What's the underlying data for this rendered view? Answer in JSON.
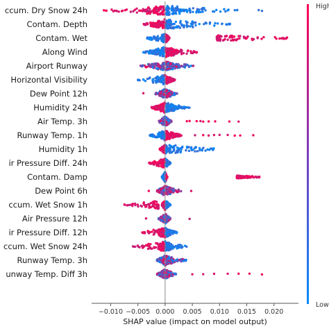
{
  "chart_data": {
    "type": "scatter",
    "subtype": "shap-beeswarm",
    "title": "",
    "xlabel": "SHAP value (impact on model output)",
    "ylabel": "",
    "xlim": [
      -0.0135,
      0.0245
    ],
    "xticks": [
      -0.01,
      -0.005,
      0.0,
      0.005,
      0.01,
      0.015,
      0.02
    ],
    "xtick_labels": [
      "−0.010",
      "−0.005",
      "0.000",
      "0.005",
      "0.010",
      "0.015",
      "0.020"
    ],
    "colorbar": {
      "high_label": "High",
      "low_label": "Low",
      "high_color": "#ff0052",
      "low_color": "#008bfb"
    },
    "zero_line": true,
    "features": [
      {
        "label": "ccum. Dry Snow 24h",
        "neg_range": [
          -0.0115,
          -0.0003
        ],
        "pos_range": [
          0.0003,
          0.0135
        ],
        "neg_color": "high",
        "pos_color": "low",
        "core_width": 0.004,
        "outliers": [
          0.0172,
          0.0178
        ]
      },
      {
        "label": "Contam. Depth",
        "neg_range": [
          -0.004,
          -0.001
        ],
        "pos_range": [
          0.0005,
          0.012
        ],
        "neg_color": "high",
        "pos_color": "low",
        "core_width": 0.0012,
        "outliers": []
      },
      {
        "label": "Contam. Wet",
        "neg_range": [
          -0.0035,
          -0.0003
        ],
        "pos_range": [
          0.0095,
          0.0238
        ],
        "neg_color": "low",
        "pos_color": "high",
        "core_width": 0.0008,
        "outliers": []
      },
      {
        "label": "Along Wind",
        "neg_range": [
          -0.004,
          -0.0003
        ],
        "pos_range": [
          0.0003,
          0.006
        ],
        "neg_color": "low",
        "pos_color": "high",
        "core_width": 0.003,
        "outliers": []
      },
      {
        "label": "Airport Runway",
        "neg_range": [
          -0.0045,
          -0.0003
        ],
        "pos_range": [
          0.0003,
          0.0052
        ],
        "neg_color": "mixed",
        "pos_color": "mixed",
        "core_width": 0.003,
        "outliers": []
      },
      {
        "label": "Horizontal Visibility",
        "neg_range": [
          -0.005,
          -0.0003
        ],
        "pos_range": [
          0.0003,
          0.0018
        ],
        "neg_color": "low",
        "pos_color": "high",
        "core_width": 0.0015,
        "outliers": []
      },
      {
        "label": "Dew Point 12h",
        "neg_range": [
          -0.0018,
          -0.0003
        ],
        "pos_range": [
          0.0003,
          0.0022
        ],
        "neg_color": "mixed",
        "pos_color": "mixed",
        "core_width": 0.001,
        "outliers": [
          -0.004
        ]
      },
      {
        "label": "Humidity 24h",
        "neg_range": [
          -0.0022,
          -0.0003
        ],
        "pos_range": [
          0.0003,
          0.0045
        ],
        "neg_color": "high",
        "pos_color": "low",
        "core_width": 0.0025,
        "outliers": []
      },
      {
        "label": "Air Temp. 3h",
        "neg_range": [
          -0.0012,
          -0.0003
        ],
        "pos_range": [
          0.0003,
          0.0012
        ],
        "neg_color": "mixed",
        "pos_color": "mixed",
        "core_width": 0.001,
        "outliers": [
          0.004,
          0.0045,
          0.0058,
          0.0065,
          0.007,
          0.008,
          0.0092,
          0.0118,
          0.0135
        ]
      },
      {
        "label": "Runway Temp. 1h",
        "neg_range": [
          -0.0028,
          -0.0003
        ],
        "pos_range": [
          0.0003,
          0.003
        ],
        "neg_color": "low",
        "pos_color": "high",
        "core_width": 0.001,
        "outliers": [
          0.0055,
          0.007,
          0.008,
          0.009,
          0.01,
          0.0115,
          0.0128,
          0.0138,
          0.0162
        ]
      },
      {
        "label": "Humidity 1h",
        "neg_range": [
          -0.001,
          -0.0003
        ],
        "pos_range": [
          0.0008,
          0.01
        ],
        "neg_color": "high",
        "pos_color": "low",
        "core_width": 0.0006,
        "outliers": []
      },
      {
        "label": "ir Pressure Diff. 24h",
        "neg_range": [
          -0.003,
          -0.0003
        ],
        "pos_range": [
          0.0003,
          0.001
        ],
        "neg_color": "high",
        "pos_color": "low",
        "core_width": 0.0006,
        "outliers": []
      },
      {
        "label": "Contam. Damp",
        "neg_range": [
          -0.0006,
          -0.0002
        ],
        "pos_range": [
          0.0132,
          0.0175
        ],
        "neg_color": "low",
        "pos_color": "high",
        "core_width": 0.0004,
        "outliers": []
      },
      {
        "label": "Dew Point 6h",
        "neg_range": [
          -0.0015,
          -0.0003
        ],
        "pos_range": [
          0.0003,
          0.003
        ],
        "neg_color": "mixed",
        "pos_color": "mixed",
        "core_width": 0.0015,
        "outliers": [
          0.0048,
          -0.003
        ]
      },
      {
        "label": "ccum. Wet Snow 1h",
        "neg_range": [
          -0.0075,
          -0.0012
        ],
        "pos_range": [
          0.0003,
          0.001
        ],
        "neg_color": "high",
        "pos_color": "low",
        "core_width": 0.0006,
        "outliers": []
      },
      {
        "label": "Air Pressure 12h",
        "neg_range": [
          -0.0012,
          -0.0003
        ],
        "pos_range": [
          0.0003,
          0.001
        ],
        "neg_color": "mixed",
        "pos_color": "mixed",
        "core_width": 0.0008,
        "outliers": [
          0.0045,
          -0.0035
        ]
      },
      {
        "label": "ir Pressure Diff. 12h",
        "neg_range": [
          -0.0045,
          -0.0003
        ],
        "pos_range": [
          0.0003,
          0.0022
        ],
        "neg_color": "high",
        "pos_color": "low",
        "core_width": 0.0008,
        "outliers": []
      },
      {
        "label": "ccum. Wet Snow 24h",
        "neg_range": [
          -0.006,
          -0.0003
        ],
        "pos_range": [
          0.0003,
          0.004
        ],
        "neg_color": "high",
        "pos_color": "low",
        "core_width": 0.0006,
        "outliers": []
      },
      {
        "label": "Runway Temp. 3h",
        "neg_range": [
          -0.0012,
          -0.0003
        ],
        "pos_range": [
          0.0003,
          0.004
        ],
        "neg_color": "mixed",
        "pos_color": "mixed",
        "core_width": 0.0015,
        "outliers": []
      },
      {
        "label": "unway Temp. Diff 3h",
        "neg_range": [
          -0.0015,
          -0.0003
        ],
        "pos_range": [
          0.0003,
          0.002
        ],
        "neg_color": "mixed",
        "pos_color": "mixed",
        "core_width": 0.001,
        "outliers": [
          0.005,
          0.007,
          0.009,
          0.0115,
          0.0135,
          0.0155,
          0.0178
        ]
      }
    ]
  }
}
